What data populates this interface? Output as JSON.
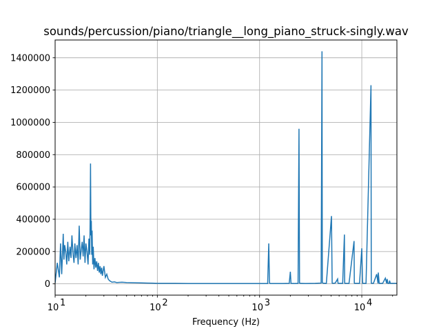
{
  "chart_data": {
    "type": "line",
    "title": "sounds/percussion/piano/triangle__long_piano_struck-singly.wav",
    "xlabel": "Frequency (Hz)",
    "ylabel": "",
    "xscale": "log",
    "xlim": [
      10,
      22050
    ],
    "ylim": [
      -70000,
      1510000
    ],
    "grid": true,
    "legend": "none",
    "color": "#1f77b4",
    "y_ticks": [
      0,
      200000,
      400000,
      600000,
      800000,
      1000000,
      1200000,
      1400000
    ],
    "y_tick_labels": [
      "0",
      "200000",
      "400000",
      "600000",
      "800000",
      "1000000",
      "1200000",
      "1400000"
    ],
    "x_ticks": [
      10,
      100,
      1000,
      10000
    ],
    "x_tick_labels": [
      {
        "base": "10",
        "exp": "1"
      },
      {
        "base": "10",
        "exp": "2"
      },
      {
        "base": "10",
        "exp": "3"
      },
      {
        "base": "10",
        "exp": "4"
      }
    ],
    "series": [
      {
        "x": [
          10,
          10.5,
          11,
          11.3,
          11.6,
          12,
          12.2,
          12.4,
          12.7,
          13,
          13.3,
          13.6,
          14,
          14.3,
          14.6,
          15,
          15.3,
          15.6,
          16,
          16.4,
          16.8,
          17.2,
          17.6,
          18,
          18.4,
          18.8,
          19.2,
          19.6,
          20,
          20.5,
          21,
          21.4,
          21.8,
          22,
          22.2,
          22.4,
          22.6,
          22.8,
          23,
          23.3,
          23.6,
          24,
          24.5,
          25,
          25.5,
          26,
          26.5,
          27,
          27.5,
          28,
          28.5,
          29,
          29.5,
          30,
          31,
          32,
          33,
          34,
          35,
          36,
          38,
          40,
          45,
          50,
          60,
          70,
          80,
          90,
          100,
          150,
          200,
          300,
          500,
          700,
          1000,
          1200,
          1230,
          1250,
          1280,
          1400,
          1700,
          1950,
          2000,
          2030,
          2200,
          2380,
          2430,
          2460,
          2520,
          2800,
          3500,
          4000,
          4080,
          4110,
          4180,
          4500,
          5050,
          5130,
          5200,
          5500,
          5800,
          5850,
          5900,
          6500,
          6760,
          6800,
          6850,
          7500,
          8400,
          8450,
          8500,
          9500,
          10000,
          10150,
          10200,
          10250,
          10500,
          11000,
          12300,
          12380,
          12450,
          13000,
          14000,
          14400,
          14500,
          14800,
          15000,
          15200,
          16000,
          17000,
          17500,
          17700,
          18000,
          18500,
          18700,
          19000,
          20000,
          22050
        ],
        "y": [
          5000,
          130000,
          40000,
          250000,
          60000,
          310000,
          150000,
          240000,
          200000,
          120000,
          260000,
          140000,
          230000,
          160000,
          300000,
          180000,
          130000,
          250000,
          160000,
          240000,
          120000,
          360000,
          150000,
          210000,
          260000,
          170000,
          300000,
          130000,
          250000,
          200000,
          120000,
          280000,
          180000,
          390000,
          745000,
          300000,
          390000,
          180000,
          330000,
          120000,
          230000,
          90000,
          160000,
          100000,
          140000,
          80000,
          130000,
          70000,
          110000,
          60000,
          100000,
          50000,
          80000,
          110000,
          40000,
          60000,
          30000,
          20000,
          15000,
          10000,
          12000,
          8000,
          10000,
          8000,
          7000,
          6000,
          5000,
          4000,
          3000,
          3000,
          2000,
          2000,
          2000,
          2000,
          2000,
          2000,
          250000,
          5000,
          2000,
          2000,
          2000,
          3000,
          75000,
          3000,
          2000,
          3000,
          960000,
          5000,
          3000,
          2000,
          3000,
          5000,
          1440000,
          8000,
          4000,
          3000,
          420000,
          5000,
          3000,
          5000,
          30000,
          5000,
          3000,
          3000,
          305000,
          5000,
          3000,
          3000,
          265000,
          5000,
          3000,
          3000,
          220000,
          30000,
          3000,
          3000,
          3000,
          3000,
          1230000,
          5000,
          3000,
          3000,
          60000,
          3000,
          70000,
          3000,
          3000,
          3000,
          3000,
          35000,
          3000,
          30000,
          3000,
          3000,
          20000,
          3000,
          3000,
          3000
        ]
      }
    ]
  }
}
